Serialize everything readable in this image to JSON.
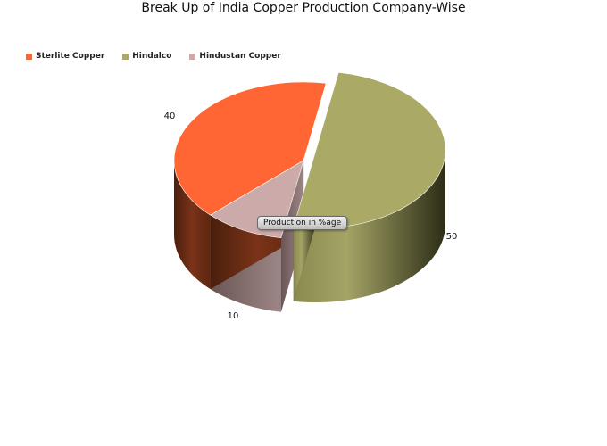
{
  "chart_data": {
    "type": "pie",
    "title": "Break Up of India Copper Production Company-Wise",
    "series_name": "Production in %age",
    "slices": [
      {
        "name": "Sterlite Copper",
        "value": 40,
        "label": "40",
        "color": "#ff6633"
      },
      {
        "name": "Hindalco",
        "value": 50,
        "label": "50",
        "color": "#aaaa66"
      },
      {
        "name": "Hindustan Copper",
        "value": 10,
        "label": "10",
        "color": "#ccaaaa"
      }
    ],
    "legend_position": "top-left",
    "three_d": true
  }
}
